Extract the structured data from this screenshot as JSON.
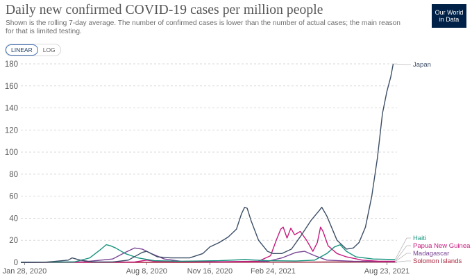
{
  "header": {
    "title": "Daily new confirmed COVID-19 cases per million people",
    "subtitle": "Shown is the rolling 7-day average. The number of confirmed cases is lower than the number of actual cases; the main reason for that is limited testing.",
    "logo_line1": "Our World",
    "logo_line2": "in Data"
  },
  "scale_toggle": {
    "linear_label": "LINEAR",
    "log_label": "LOG",
    "selected": "LINEAR"
  },
  "colors": {
    "Japan": "#3c4e66",
    "Haiti": "#18947f",
    "Papua New Guinea": "#c41a7d",
    "Madagascar": "#7a4696",
    "Solomon Islands": "#a8243a"
  },
  "chart_data": {
    "type": "line",
    "title": "Daily new confirmed COVID-19 cases per million people",
    "ylim": [
      0,
      180
    ],
    "y_ticks": [
      0,
      20,
      40,
      60,
      80,
      100,
      120,
      140,
      160,
      180
    ],
    "x_range": [
      "2020-01-22",
      "2021-09-08"
    ],
    "x_ticks": [
      {
        "date": "2020-01-28",
        "label": "Jan 28, 2020"
      },
      {
        "date": "2020-08-08",
        "label": "Aug 8, 2020"
      },
      {
        "date": "2020-11-16",
        "label": "Nov 16, 2020"
      },
      {
        "date": "2021-02-24",
        "label": "Feb 24, 2021"
      },
      {
        "date": "2021-08-23",
        "label": "Aug 23, 2021"
      }
    ],
    "grid": true,
    "series": [
      {
        "name": "Japan",
        "points": [
          [
            "2020-01-22",
            0
          ],
          [
            "2020-03-01",
            0.1
          ],
          [
            "2020-04-06",
            2
          ],
          [
            "2020-04-12",
            4
          ],
          [
            "2020-04-25",
            2
          ],
          [
            "2020-05-15",
            0.3
          ],
          [
            "2020-06-15",
            0.4
          ],
          [
            "2020-07-10",
            2
          ],
          [
            "2020-08-01",
            9
          ],
          [
            "2020-08-08",
            10
          ],
          [
            "2020-08-25",
            5
          ],
          [
            "2020-09-15",
            4
          ],
          [
            "2020-10-15",
            4
          ],
          [
            "2020-11-05",
            8
          ],
          [
            "2020-11-16",
            14
          ],
          [
            "2020-12-01",
            18
          ],
          [
            "2020-12-15",
            23
          ],
          [
            "2020-12-28",
            30
          ],
          [
            "2021-01-05",
            44
          ],
          [
            "2021-01-10",
            50
          ],
          [
            "2021-01-14",
            49
          ],
          [
            "2021-01-20",
            38
          ],
          [
            "2021-02-01",
            20
          ],
          [
            "2021-02-15",
            10
          ],
          [
            "2021-02-24",
            8
          ],
          [
            "2021-03-10",
            8
          ],
          [
            "2021-03-25",
            12
          ],
          [
            "2021-04-10",
            25
          ],
          [
            "2021-04-25",
            38
          ],
          [
            "2021-05-08",
            47
          ],
          [
            "2021-05-12",
            50
          ],
          [
            "2021-05-20",
            42
          ],
          [
            "2021-06-05",
            20
          ],
          [
            "2021-06-20",
            12
          ],
          [
            "2021-07-01",
            13
          ],
          [
            "2021-07-10",
            18
          ],
          [
            "2021-07-20",
            32
          ],
          [
            "2021-07-30",
            60
          ],
          [
            "2021-08-08",
            95
          ],
          [
            "2021-08-16",
            135
          ],
          [
            "2021-08-23",
            155
          ],
          [
            "2021-08-29",
            168
          ],
          [
            "2021-09-02",
            180
          ]
        ]
      },
      {
        "name": "Haiti",
        "points": [
          [
            "2020-01-22",
            0
          ],
          [
            "2020-04-15",
            0.3
          ],
          [
            "2020-05-10",
            4
          ],
          [
            "2020-05-28",
            12
          ],
          [
            "2020-06-05",
            16
          ],
          [
            "2020-06-12",
            15
          ],
          [
            "2020-06-20",
            13
          ],
          [
            "2020-07-05",
            8
          ],
          [
            "2020-07-25",
            4
          ],
          [
            "2020-08-20",
            1.5
          ],
          [
            "2020-10-01",
            1
          ],
          [
            "2020-12-01",
            1.5
          ],
          [
            "2021-01-10",
            2.5
          ],
          [
            "2021-02-15",
            1.5
          ],
          [
            "2021-04-01",
            1.2
          ],
          [
            "2021-05-01",
            2
          ],
          [
            "2021-05-20",
            8
          ],
          [
            "2021-06-01",
            14
          ],
          [
            "2021-06-10",
            16
          ],
          [
            "2021-06-20",
            10
          ],
          [
            "2021-07-05",
            5
          ],
          [
            "2021-08-01",
            3
          ],
          [
            "2021-09-05",
            2.5
          ]
        ]
      },
      {
        "name": "Papua New Guinea",
        "points": [
          [
            "2020-01-22",
            0
          ],
          [
            "2020-07-20",
            0.3
          ],
          [
            "2020-08-08",
            2
          ],
          [
            "2020-08-20",
            1
          ],
          [
            "2020-12-01",
            0.5
          ],
          [
            "2021-02-01",
            1
          ],
          [
            "2021-02-20",
            6
          ],
          [
            "2021-03-01",
            20
          ],
          [
            "2021-03-08",
            30
          ],
          [
            "2021-03-12",
            32
          ],
          [
            "2021-03-18",
            22
          ],
          [
            "2021-03-24",
            31
          ],
          [
            "2021-03-30",
            25
          ],
          [
            "2021-04-08",
            28
          ],
          [
            "2021-04-18",
            20
          ],
          [
            "2021-04-28",
            10
          ],
          [
            "2021-05-05",
            18
          ],
          [
            "2021-05-10",
            32
          ],
          [
            "2021-05-14",
            28
          ],
          [
            "2021-05-22",
            15
          ],
          [
            "2021-06-05",
            8
          ],
          [
            "2021-06-20",
            5
          ],
          [
            "2021-07-15",
            2
          ],
          [
            "2021-08-10",
            1
          ],
          [
            "2021-09-05",
            1
          ]
        ]
      },
      {
        "name": "Madagascar",
        "points": [
          [
            "2020-01-22",
            0
          ],
          [
            "2020-05-01",
            0.5
          ],
          [
            "2020-06-15",
            3
          ],
          [
            "2020-07-05",
            9
          ],
          [
            "2020-07-20",
            13
          ],
          [
            "2020-08-01",
            12
          ],
          [
            "2020-08-15",
            8
          ],
          [
            "2020-09-05",
            3
          ],
          [
            "2020-10-01",
            1
          ],
          [
            "2020-12-01",
            0.5
          ],
          [
            "2021-02-15",
            0.8
          ],
          [
            "2021-03-10",
            4
          ],
          [
            "2021-04-01",
            9
          ],
          [
            "2021-04-15",
            10
          ],
          [
            "2021-05-01",
            6
          ],
          [
            "2021-05-20",
            2
          ],
          [
            "2021-07-01",
            1
          ],
          [
            "2021-09-05",
            0.6
          ]
        ]
      },
      {
        "name": "Solomon Islands",
        "points": [
          [
            "2020-01-22",
            0
          ],
          [
            "2020-10-01",
            0
          ],
          [
            "2021-04-01",
            0.2
          ],
          [
            "2021-06-01",
            0.3
          ],
          [
            "2021-09-05",
            0.2
          ]
        ]
      }
    ],
    "end_labels": [
      "Japan",
      "Haiti",
      "Papua New Guinea",
      "Madagascar",
      "Solomon Islands"
    ]
  }
}
